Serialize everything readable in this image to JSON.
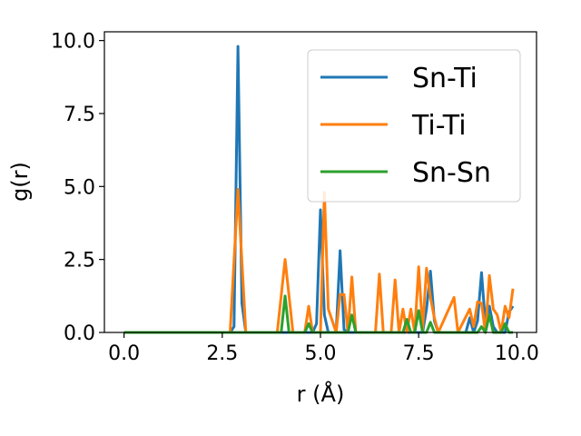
{
  "chart_data": {
    "type": "line",
    "xlabel": "r (Å)",
    "ylabel": "g(r)",
    "xlim": [
      -0.5,
      10.5
    ],
    "ylim": [
      0.0,
      10.3
    ],
    "xticks": [
      "0.0",
      "2.5",
      "5.0",
      "7.5",
      "10.0"
    ],
    "yticks": [
      "0.0",
      "2.5",
      "5.0",
      "7.5",
      "10.0"
    ],
    "grid": false,
    "legend_position": "top-right",
    "series": [
      {
        "name": "Sn-Ti",
        "color": "#1f77b4",
        "points": [
          [
            0.0,
            0.0
          ],
          [
            2.7,
            0.0
          ],
          [
            2.8,
            0.2
          ],
          [
            2.9,
            9.8
          ],
          [
            3.0,
            1.0
          ],
          [
            3.1,
            0.0
          ],
          [
            4.8,
            0.0
          ],
          [
            4.9,
            0.3
          ],
          [
            5.0,
            4.2
          ],
          [
            5.1,
            0.6
          ],
          [
            5.2,
            0.0
          ],
          [
            5.4,
            0.0
          ],
          [
            5.5,
            2.8
          ],
          [
            5.6,
            0.1
          ],
          [
            5.7,
            0.0
          ],
          [
            7.6,
            0.0
          ],
          [
            7.7,
            0.8
          ],
          [
            7.8,
            2.1
          ],
          [
            7.9,
            0.4
          ],
          [
            8.0,
            0.0
          ],
          [
            8.7,
            0.0
          ],
          [
            8.8,
            0.5
          ],
          [
            8.9,
            0.0
          ],
          [
            9.0,
            0.4
          ],
          [
            9.1,
            2.05
          ],
          [
            9.2,
            0.3
          ],
          [
            9.3,
            0.9
          ],
          [
            9.4,
            0.2
          ],
          [
            9.5,
            0.0
          ],
          [
            9.7,
            0.0
          ],
          [
            9.8,
            0.7
          ],
          [
            9.9,
            0.9
          ]
        ]
      },
      {
        "name": "Ti-Ti",
        "color": "#ff7f0e",
        "points": [
          [
            0.0,
            0.0
          ],
          [
            2.7,
            0.0
          ],
          [
            2.9,
            4.9
          ],
          [
            3.1,
            0.0
          ],
          [
            3.9,
            0.0
          ],
          [
            4.1,
            2.5
          ],
          [
            4.3,
            0.0
          ],
          [
            4.6,
            0.0
          ],
          [
            4.7,
            0.9
          ],
          [
            4.8,
            0.0
          ],
          [
            5.0,
            0.0
          ],
          [
            5.1,
            4.8
          ],
          [
            5.2,
            0.8
          ],
          [
            5.4,
            0.0
          ],
          [
            5.5,
            1.3
          ],
          [
            5.6,
            1.3
          ],
          [
            5.7,
            0.0
          ],
          [
            5.8,
            1.9
          ],
          [
            5.9,
            0.0
          ],
          [
            6.4,
            0.0
          ],
          [
            6.5,
            2.0
          ],
          [
            6.6,
            0.0
          ],
          [
            6.8,
            0.0
          ],
          [
            6.9,
            1.8
          ],
          [
            7.0,
            0.0
          ],
          [
            7.1,
            0.8
          ],
          [
            7.2,
            0.0
          ],
          [
            7.3,
            0.8
          ],
          [
            7.4,
            0.0
          ],
          [
            7.5,
            2.25
          ],
          [
            7.6,
            0.1
          ],
          [
            7.7,
            2.2
          ],
          [
            7.8,
            1.2
          ],
          [
            7.9,
            0.5
          ],
          [
            8.0,
            0.0
          ],
          [
            8.4,
            1.2
          ],
          [
            8.5,
            0.0
          ],
          [
            8.8,
            0.8
          ],
          [
            8.9,
            0.2
          ],
          [
            9.0,
            1.05
          ],
          [
            9.1,
            1.0
          ],
          [
            9.2,
            0.0
          ],
          [
            9.3,
            1.95
          ],
          [
            9.4,
            0.8
          ],
          [
            9.5,
            0.6
          ],
          [
            9.6,
            0.0
          ],
          [
            9.7,
            0.9
          ],
          [
            9.8,
            0.5
          ],
          [
            9.9,
            1.5
          ]
        ]
      },
      {
        "name": "Sn-Sn",
        "color": "#2ca02c",
        "points": [
          [
            0.0,
            0.0
          ],
          [
            4.0,
            0.0
          ],
          [
            4.1,
            1.25
          ],
          [
            4.2,
            0.0
          ],
          [
            4.6,
            0.0
          ],
          [
            4.7,
            0.3
          ],
          [
            4.8,
            0.0
          ],
          [
            5.7,
            0.0
          ],
          [
            5.8,
            0.6
          ],
          [
            5.9,
            0.0
          ],
          [
            7.1,
            0.0
          ],
          [
            7.2,
            0.45
          ],
          [
            7.3,
            0.0
          ],
          [
            7.4,
            0.0
          ],
          [
            7.5,
            0.75
          ],
          [
            7.6,
            0.0
          ],
          [
            7.7,
            0.0
          ],
          [
            7.8,
            0.35
          ],
          [
            7.9,
            0.0
          ],
          [
            9.0,
            0.0
          ],
          [
            9.1,
            0.2
          ],
          [
            9.2,
            0.0
          ],
          [
            9.3,
            0.6
          ],
          [
            9.4,
            0.0
          ],
          [
            9.6,
            0.0
          ],
          [
            9.7,
            0.3
          ],
          [
            9.8,
            0.0
          ],
          [
            9.9,
            0.0
          ]
        ]
      }
    ]
  }
}
